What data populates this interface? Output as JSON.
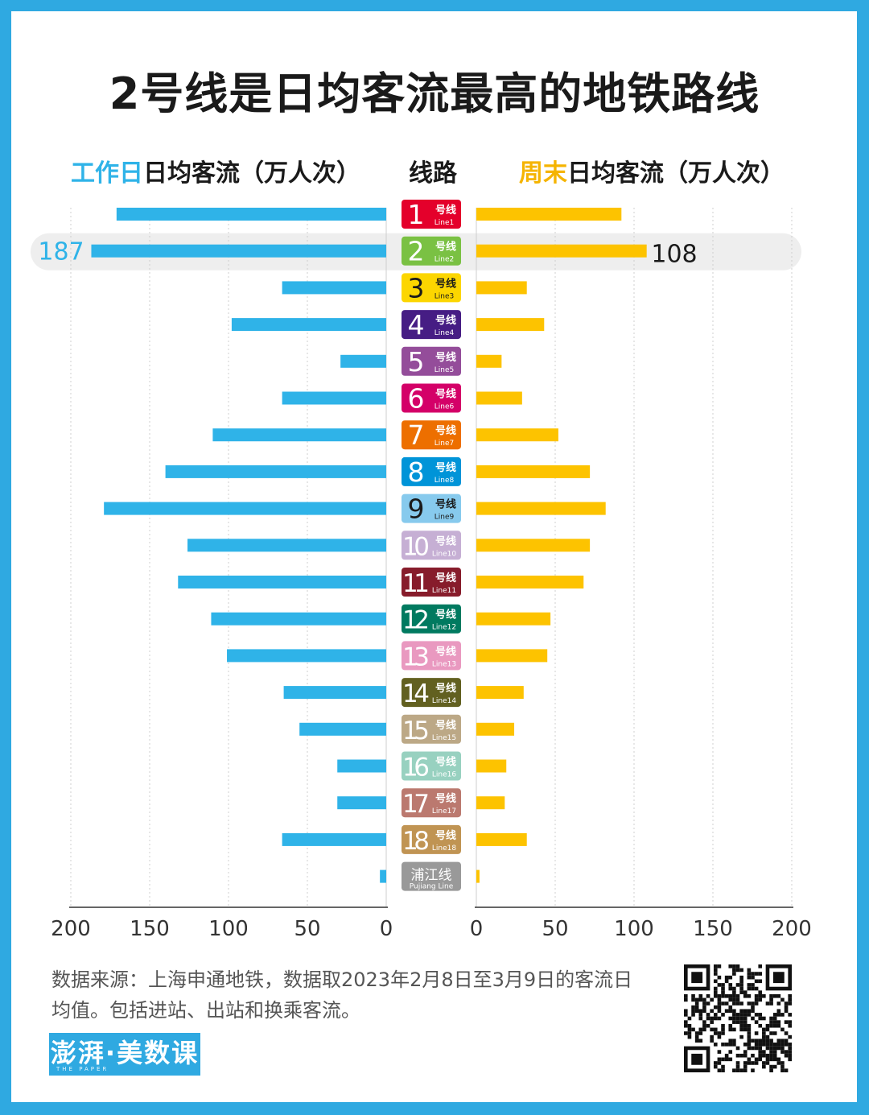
{
  "title": "2号线是日均客流最高的地铁路线",
  "header": {
    "left_highlight": "工作日",
    "left_rest": "日均客流（万人次）",
    "middle": "线路",
    "right_highlight": "周末",
    "right_rest": "日均客流（万人次）"
  },
  "colors": {
    "weekday": "#2fb3e8",
    "weekend": "#fdc300",
    "highlight_row": "#eeeeee"
  },
  "chart_data": {
    "type": "bar",
    "orientation": "horizontal-butterfly",
    "categories": [
      "1号线",
      "2号线",
      "3号线",
      "4号线",
      "5号线",
      "6号线",
      "7号线",
      "8号线",
      "9号线",
      "10号线",
      "11号线",
      "12号线",
      "13号线",
      "14号线",
      "15号线",
      "16号线",
      "17号线",
      "18号线",
      "浦江线"
    ],
    "series": [
      {
        "name": "工作日",
        "color": "#2fb3e8",
        "values": [
          171,
          187,
          66,
          98,
          29,
          66,
          110,
          140,
          179,
          126,
          132,
          111,
          101,
          65,
          55,
          31,
          31,
          66,
          4
        ]
      },
      {
        "name": "周末",
        "color": "#fdc300",
        "values": [
          92,
          108,
          32,
          43,
          16,
          29,
          52,
          72,
          82,
          72,
          68,
          47,
          45,
          30,
          24,
          19,
          18,
          32,
          2
        ]
      }
    ],
    "highlight": {
      "category": "2号线",
      "weekday_label": "187",
      "weekend_label": "108"
    },
    "lines": [
      {
        "num": "1",
        "cn": "号线",
        "en": "Line1",
        "color": "#e4002b"
      },
      {
        "num": "2",
        "cn": "号线",
        "en": "Line2",
        "color": "#7ac143"
      },
      {
        "num": "3",
        "cn": "号线",
        "en": "Line3",
        "color": "#fcd600"
      },
      {
        "num": "4",
        "cn": "号线",
        "en": "Line4",
        "color": "#461d84"
      },
      {
        "num": "5",
        "cn": "号线",
        "en": "Line5",
        "color": "#944d9a"
      },
      {
        "num": "6",
        "cn": "号线",
        "en": "Line6",
        "color": "#d40068"
      },
      {
        "num": "7",
        "cn": "号线",
        "en": "Line7",
        "color": "#ed6f00"
      },
      {
        "num": "8",
        "cn": "号线",
        "en": "Line8",
        "color": "#0094d8"
      },
      {
        "num": "9",
        "cn": "号线",
        "en": "Line9",
        "color": "#87caed"
      },
      {
        "num": "10",
        "cn": "号线",
        "en": "Line10",
        "color": "#c6afd4"
      },
      {
        "num": "11",
        "cn": "号线",
        "en": "Line11",
        "color": "#871c2b"
      },
      {
        "num": "12",
        "cn": "号线",
        "en": "Line12",
        "color": "#007a60"
      },
      {
        "num": "13",
        "cn": "号线",
        "en": "Line13",
        "color": "#e999c0"
      },
      {
        "num": "14",
        "cn": "号线",
        "en": "Line14",
        "color": "#626020"
      },
      {
        "num": "15",
        "cn": "号线",
        "en": "Line15",
        "color": "#bca886"
      },
      {
        "num": "16",
        "cn": "号线",
        "en": "Line16",
        "color": "#98d1c0"
      },
      {
        "num": "17",
        "cn": "号线",
        "en": "Line17",
        "color": "#bb796f"
      },
      {
        "num": "18",
        "cn": "号线",
        "en": "Line18",
        "color": "#c09453"
      },
      {
        "num": "",
        "cn": "浦江线",
        "en": "Pujiang Line",
        "color": "#999999"
      }
    ],
    "left_axis": {
      "ticks": [
        "200",
        "150",
        "100",
        "50",
        "0"
      ],
      "range": [
        0,
        200
      ],
      "reversed": true
    },
    "right_axis": {
      "ticks": [
        "0",
        "50",
        "100",
        "150",
        "200"
      ],
      "range": [
        0,
        200
      ]
    },
    "grid": true
  },
  "footnote": "数据来源：上海申通地铁，数据取2023年2月8日至3月9日的客流日均值。包括进站、出站和换乘客流。",
  "logo": {
    "text": "澎湃·美数课",
    "sub": "THE PAPER"
  },
  "qr_icon": "qr-code-icon"
}
